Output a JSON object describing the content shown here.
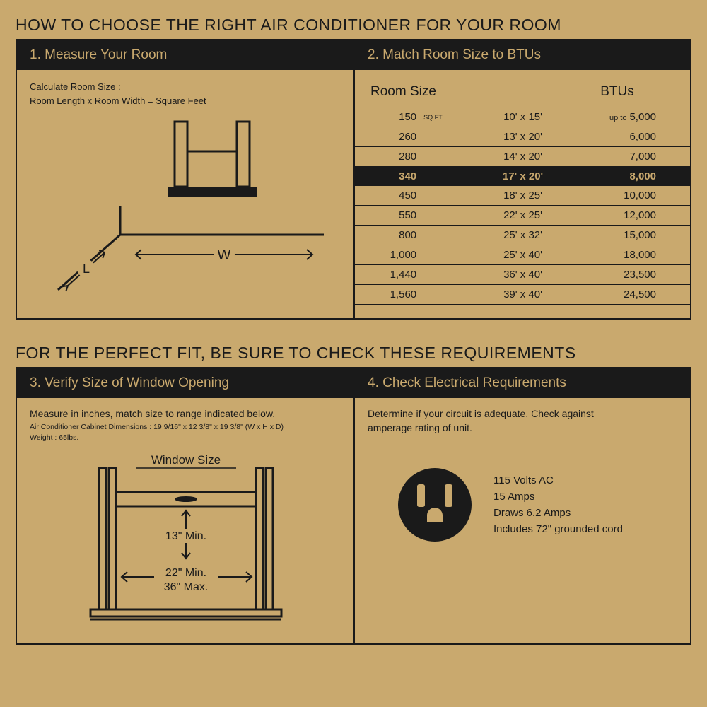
{
  "colors": {
    "bg": "#c9a96e",
    "ink": "#1a1a1a"
  },
  "top_title": "HOW TO CHOOSE THE RIGHT AIR CONDITIONER FOR YOUR ROOM",
  "bottom_title": "FOR THE PERFECT FIT, BE SURE TO CHECK THESE REQUIREMENTS",
  "panel1": {
    "header": "1. Measure Your Room",
    "calc_label": "Calculate Room Size :",
    "calc_formula": "Room Length x Room Width = Square Feet",
    "w_label": "W",
    "l_label": "L"
  },
  "panel2": {
    "header": "2. Match Room Size to BTUs",
    "col_room": "Room Size",
    "col_btu": "BTUs",
    "sqft_label": "SQ.FT.",
    "upto": "up to",
    "rows": [
      {
        "sqft": "150",
        "dims": "10' x 15'",
        "btu": "5,000",
        "hl": false,
        "showSqftLabel": true,
        "showUpto": true
      },
      {
        "sqft": "260",
        "dims": "13' x 20'",
        "btu": "6,000",
        "hl": false
      },
      {
        "sqft": "280",
        "dims": "14' x 20'",
        "btu": "7,000",
        "hl": false
      },
      {
        "sqft": "340",
        "dims": "17' x 20'",
        "btu": "8,000",
        "hl": true
      },
      {
        "sqft": "450",
        "dims": "18' x 25'",
        "btu": "10,000",
        "hl": false
      },
      {
        "sqft": "550",
        "dims": "22' x 25'",
        "btu": "12,000",
        "hl": false
      },
      {
        "sqft": "800",
        "dims": "25' x 32'",
        "btu": "15,000",
        "hl": false
      },
      {
        "sqft": "1,000",
        "dims": "25' x 40'",
        "btu": "18,000",
        "hl": false
      },
      {
        "sqft": "1,440",
        "dims": "36' x 40'",
        "btu": "23,500",
        "hl": false
      },
      {
        "sqft": "1,560",
        "dims": "39' x 40'",
        "btu": "24,500",
        "hl": false
      }
    ]
  },
  "panel3": {
    "header": "3. Verify Size of Window Opening",
    "instr": "Measure in inches, match size to range indicated below.",
    "dims_line": "Air Conditioner Cabinet Dimensions : 19 9/16\" x 12 3/8\" x 19 3/8\" (W x H x D)",
    "weight_line": "Weight : 65lbs.",
    "window_size_label": "Window Size",
    "h_min": "13\" Min.",
    "w_min": "22\" Min.",
    "w_max": "36\" Max."
  },
  "panel4": {
    "header": "4. Check Electrical Requirements",
    "instr1": "Determine if your circuit is adequate. Check against",
    "instr2": "amperage rating of unit.",
    "specs": [
      "115 Volts AC",
      "15 Amps",
      "Draws 6.2 Amps",
      "Includes 72\" grounded cord"
    ]
  }
}
